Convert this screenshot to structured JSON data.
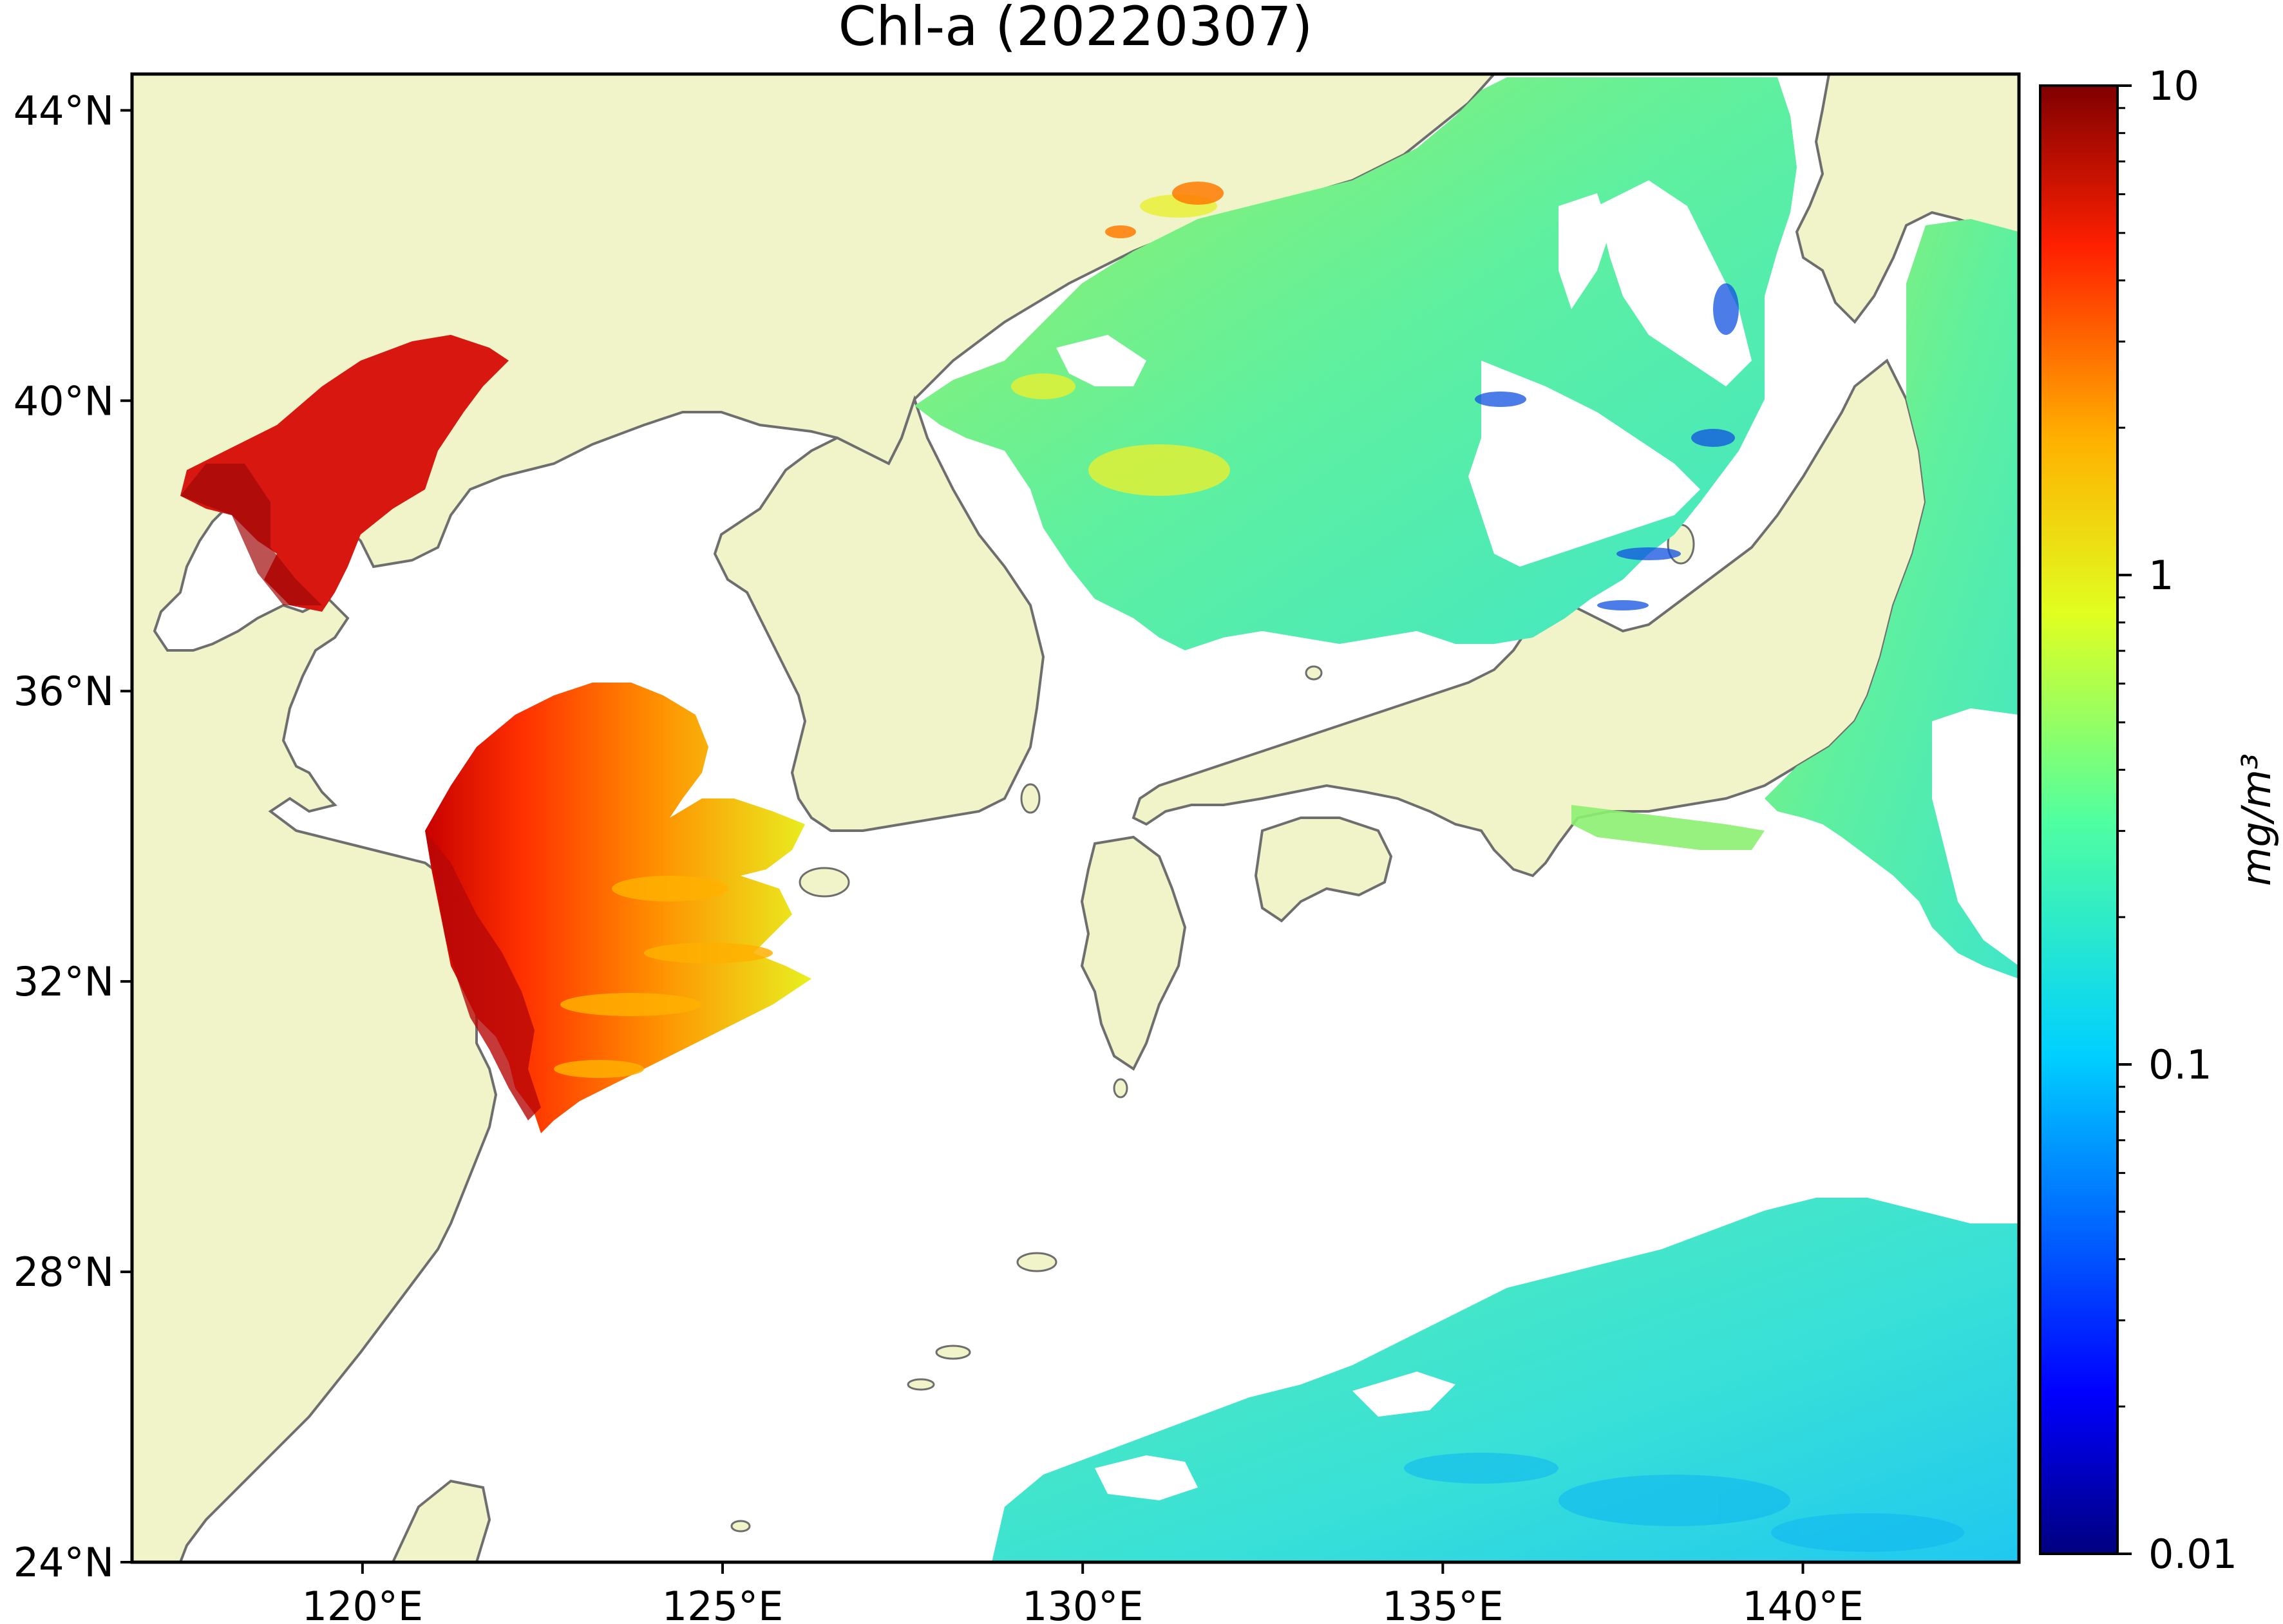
{
  "map": {
    "title": "Chl-a (20220307)",
    "lon_range": [
      116.8,
      143.0
    ],
    "lat_range": [
      24.0,
      44.5
    ],
    "x_ticks": [
      {
        "value": 120,
        "label": "120°E"
      },
      {
        "value": 125,
        "label": "125°E"
      },
      {
        "value": 130,
        "label": "130°E"
      },
      {
        "value": 135,
        "label": "135°E"
      },
      {
        "value": 140,
        "label": "140°E"
      }
    ],
    "y_ticks": [
      {
        "value": 24,
        "label": "24°N"
      },
      {
        "value": 28,
        "label": "28°N"
      },
      {
        "value": 32,
        "label": "32°N"
      },
      {
        "value": 36,
        "label": "36°N"
      },
      {
        "value": 40,
        "label": "40°N"
      },
      {
        "value": 44,
        "label": "44°N"
      }
    ],
    "land_color": "#f0f4c8",
    "coast_color": "#6e6e6e",
    "no_data_color": "#ffffff"
  },
  "colorbar": {
    "label": "mg/m³",
    "scale": "log",
    "range": [
      0.01,
      10
    ],
    "colormap": "jet",
    "ticks": [
      {
        "value": 10,
        "label": "10"
      },
      {
        "value": 1,
        "label": "1"
      },
      {
        "value": 0.1,
        "label": "0.1"
      },
      {
        "value": 0.01,
        "label": "0.01"
      }
    ]
  }
}
